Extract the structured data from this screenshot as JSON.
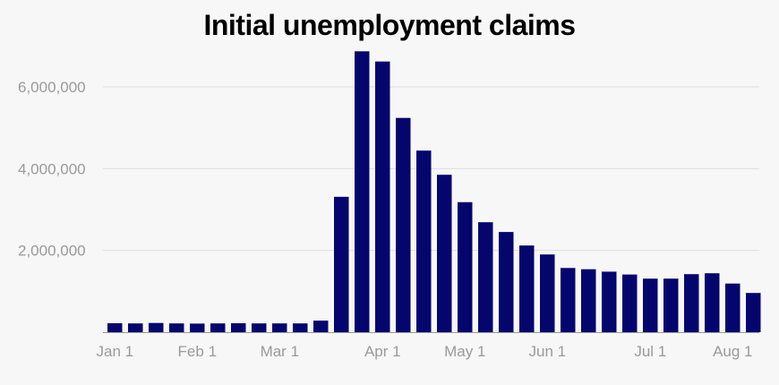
{
  "chart_data": {
    "type": "bar",
    "title": "Initial unemployment claims",
    "xlabel": "",
    "ylabel": "",
    "ylim": [
      0,
      7000000
    ],
    "yticks": [
      2000000,
      4000000,
      6000000
    ],
    "ytick_labels": [
      "2,000,000",
      "4,000,000",
      "6,000,000"
    ],
    "grid": true,
    "bar_color": "#05056e",
    "x_tick_labels": [
      {
        "label": "Jan 1",
        "bar_index": 0
      },
      {
        "label": "Feb 1",
        "bar_index": 4
      },
      {
        "label": "Mar 1",
        "bar_index": 8
      },
      {
        "label": "Apr 1",
        "bar_index": 13
      },
      {
        "label": "May 1",
        "bar_index": 17
      },
      {
        "label": "Jun 1",
        "bar_index": 21
      },
      {
        "label": "Jul 1",
        "bar_index": 26
      },
      {
        "label": "Aug 1",
        "bar_index": 30
      }
    ],
    "values": [
      220000,
      215000,
      225000,
      215000,
      210000,
      215000,
      220000,
      215000,
      215000,
      215000,
      282000,
      3310000,
      6870000,
      6620000,
      5240000,
      4440000,
      3850000,
      3180000,
      2690000,
      2450000,
      2120000,
      1900000,
      1570000,
      1540000,
      1480000,
      1410000,
      1310000,
      1310000,
      1420000,
      1440000,
      1190000,
      960000
    ]
  }
}
